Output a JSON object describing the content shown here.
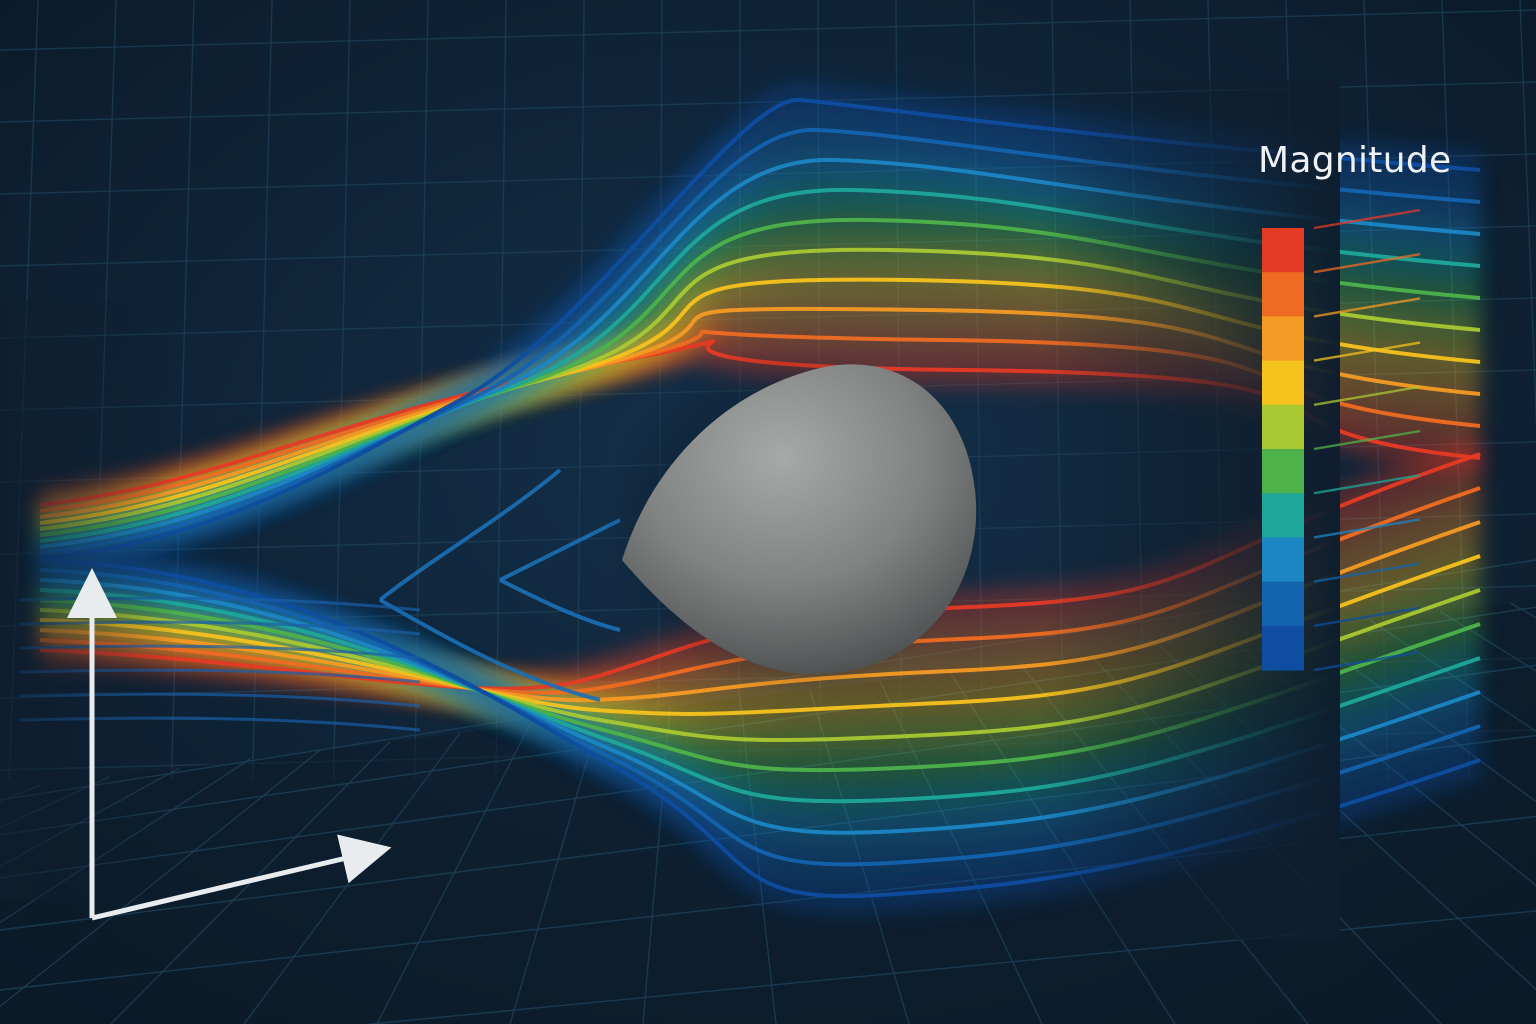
{
  "legend": {
    "title": "Magnitude",
    "colors": [
      "#e53a24",
      "#ef6b22",
      "#f59a24",
      "#f5c21e",
      "#a9c832",
      "#4eb24b",
      "#1fa69a",
      "#1b86c4",
      "#1463ae",
      "#0f4da0"
    ]
  },
  "palette": {
    "background": "#0e1e2e",
    "grid": "#1d4058",
    "axis": "#e8ecef",
    "obstacle": "#8a8c8c"
  }
}
